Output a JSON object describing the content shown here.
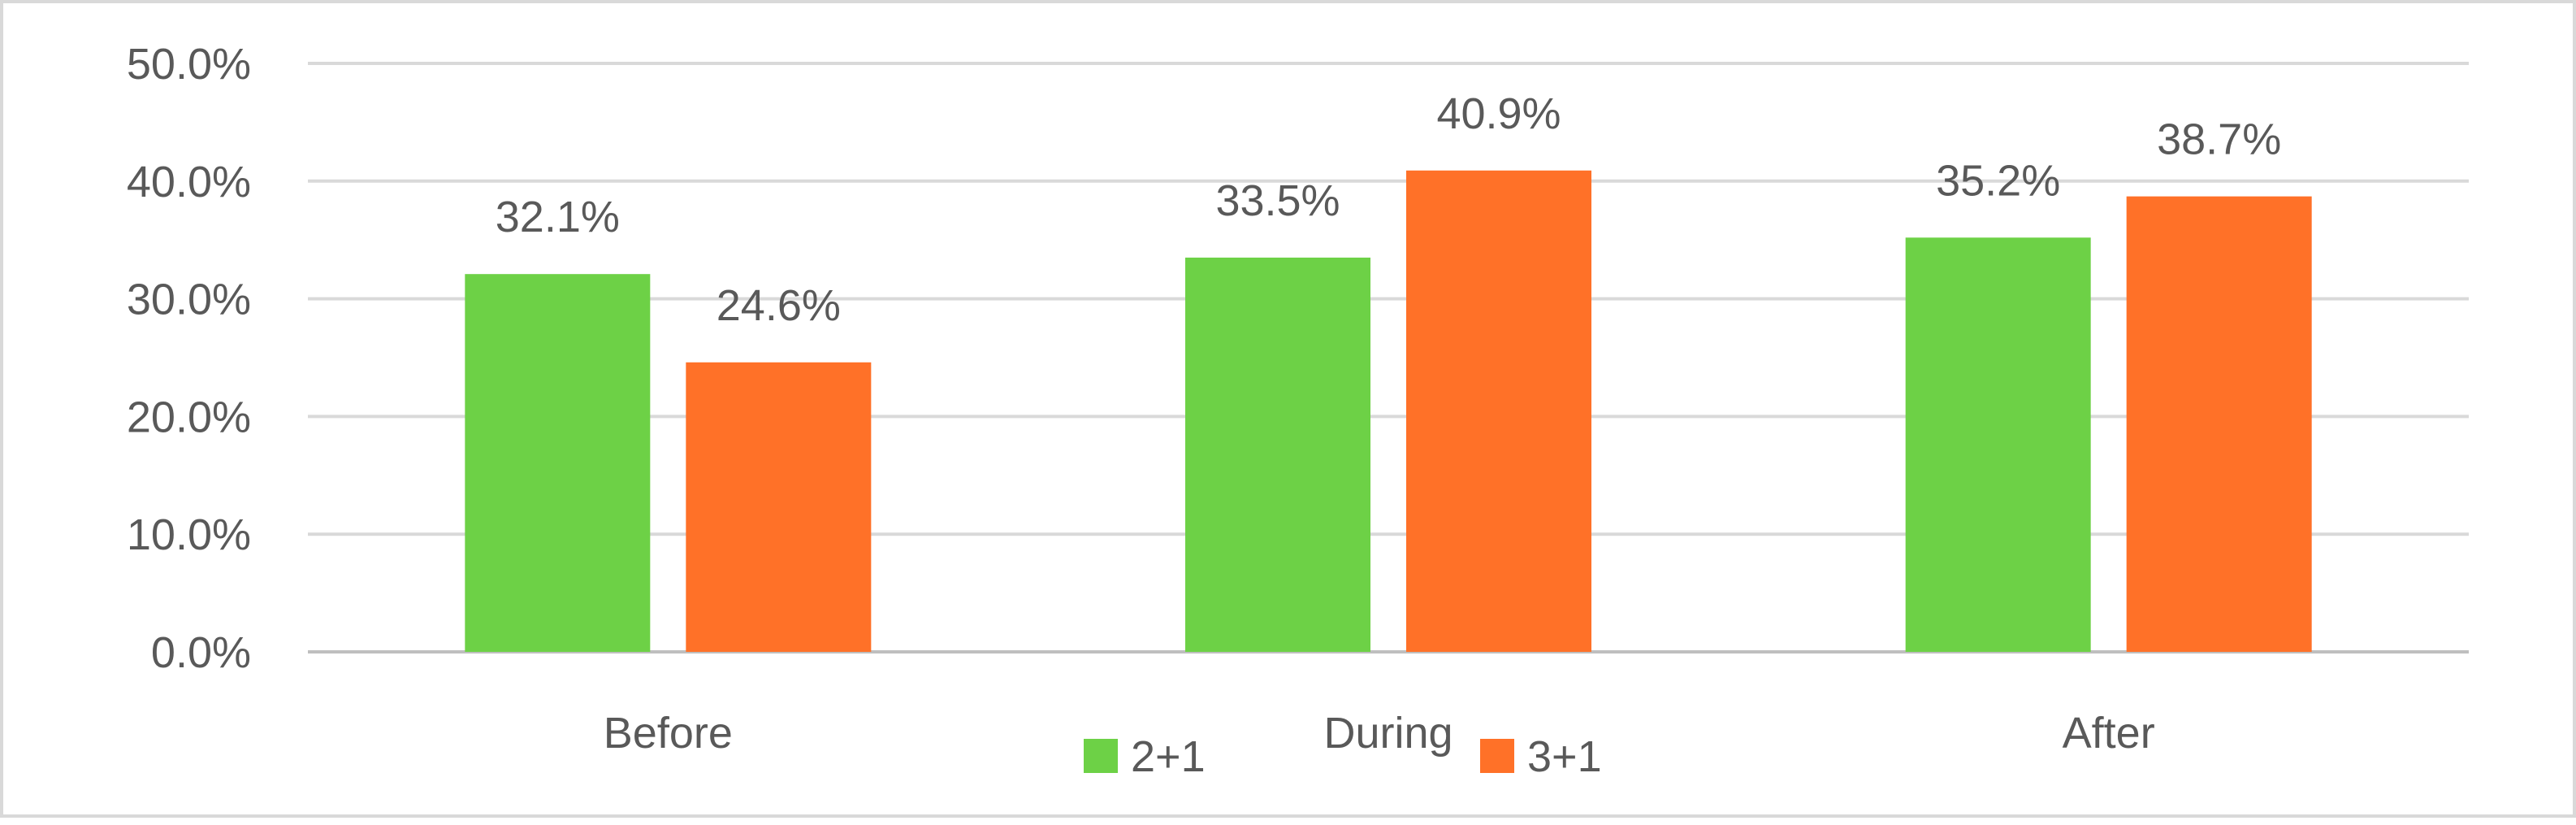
{
  "chart_data": {
    "type": "bar",
    "categories": [
      "Before",
      "During",
      "After"
    ],
    "series": [
      {
        "name": "2+1",
        "values": [
          32.1,
          33.5,
          35.2
        ],
        "labels": [
          "32.1%",
          "33.5%",
          "35.2%"
        ],
        "color": "#6dd146"
      },
      {
        "name": "3+1",
        "values": [
          24.6,
          40.9,
          38.7
        ],
        "labels": [
          "24.6%",
          "40.9%",
          "38.7%"
        ],
        "color": "#ff7128"
      }
    ],
    "ylim": [
      0,
      50
    ],
    "y_ticks": [
      "0.0%",
      "10.0%",
      "20.0%",
      "30.0%",
      "40.0%",
      "50.0%"
    ],
    "grid": true,
    "legend_position": "bottom-center",
    "colors": {
      "grid": "#d9d9d9",
      "text": "#595959",
      "axis": "#bfbfbf"
    }
  }
}
